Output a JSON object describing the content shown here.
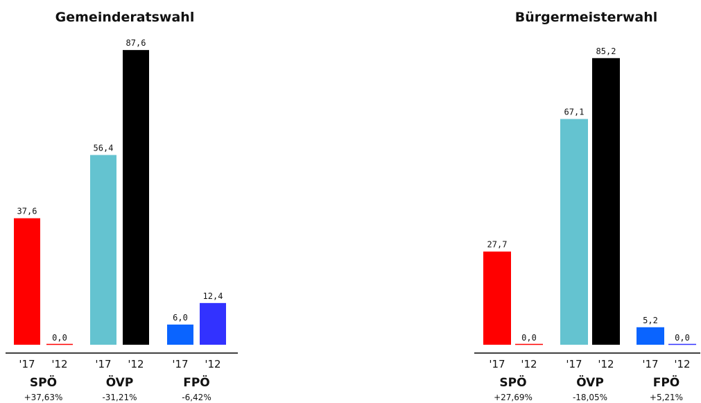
{
  "chart_data": [
    {
      "type": "bar",
      "title": "Gemeinderatswahl",
      "year_labels": [
        "'17",
        "'12"
      ],
      "parties": [
        "SPÖ",
        "ÖVP",
        "FPÖ"
      ],
      "changes": [
        "+37,63%",
        "-31,21%",
        "-6,42%"
      ],
      "series": [
        {
          "name": "'17",
          "values": [
            37.6,
            56.4,
            6.0
          ]
        },
        {
          "name": "'12",
          "values": [
            0.0,
            87.6,
            12.4
          ]
        }
      ],
      "value_labels": [
        [
          "37,6",
          "0,0"
        ],
        [
          "56,4",
          "87,6"
        ],
        [
          "6,0",
          "12,4"
        ]
      ],
      "ylim": [
        0,
        90
      ],
      "colors": [
        [
          "#ff0000",
          "#ff0000"
        ],
        [
          "#64c3d0",
          "#000000"
        ],
        [
          "#0a64ff",
          "#3232ff"
        ]
      ]
    },
    {
      "type": "bar",
      "title": "Bürgermeisterwahl",
      "year_labels": [
        "'17",
        "'12"
      ],
      "parties": [
        "SPÖ",
        "ÖVP",
        "FPÖ"
      ],
      "changes": [
        "+27,69%",
        "-18,05%",
        "+5,21%"
      ],
      "series": [
        {
          "name": "'17",
          "values": [
            27.7,
            67.1,
            5.2
          ]
        },
        {
          "name": "'12",
          "values": [
            0.0,
            85.2,
            0.0
          ]
        }
      ],
      "value_labels": [
        [
          "27,7",
          "0,0"
        ],
        [
          "67,1",
          "85,2"
        ],
        [
          "5,2",
          "0,0"
        ]
      ],
      "ylim": [
        0,
        90
      ],
      "colors": [
        [
          "#ff0000",
          "#ff0000"
        ],
        [
          "#64c3d0",
          "#000000"
        ],
        [
          "#0a64ff",
          "#3232ff"
        ]
      ]
    }
  ]
}
